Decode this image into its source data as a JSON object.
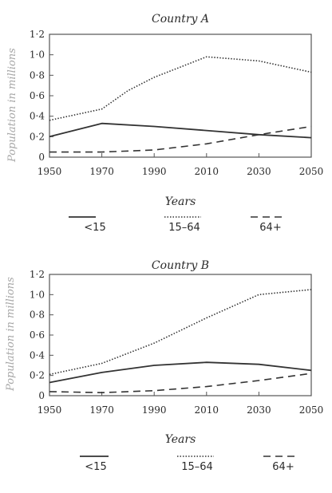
{
  "chart_data": [
    {
      "type": "line",
      "title": "Country A",
      "xlabel": "Years",
      "ylabel": "Population in millions",
      "x": [
        1950,
        1970,
        1990,
        2010,
        2030,
        2050
      ],
      "xticks": [
        "1950",
        "1970",
        "1990",
        "2010",
        "2030",
        "2050"
      ],
      "ylim": [
        0,
        1.2
      ],
      "yticks": [
        "0",
        "0·2",
        "0·4",
        "0·6",
        "0·8",
        "1·0",
        "1·2"
      ],
      "grid": false,
      "legend_position": "bottom",
      "series": [
        {
          "name": "<15",
          "style": "solid",
          "color": "#333333",
          "points": [
            [
              1950,
              0.2
            ],
            [
              1970,
              0.33
            ],
            [
              1990,
              0.3
            ],
            [
              2010,
              0.26
            ],
            [
              2030,
              0.22
            ],
            [
              2050,
              0.19
            ]
          ]
        },
        {
          "name": "15–64",
          "style": "dotted",
          "color": "#333333",
          "points": [
            [
              1950,
              0.36
            ],
            [
              1970,
              0.47
            ],
            [
              1980,
              0.65
            ],
            [
              1990,
              0.78
            ],
            [
              2000,
              0.88
            ],
            [
              2010,
              0.98
            ],
            [
              2030,
              0.94
            ],
            [
              2050,
              0.83
            ]
          ]
        },
        {
          "name": "64+",
          "style": "dashed",
          "color": "#333333",
          "points": [
            [
              1950,
              0.05
            ],
            [
              1970,
              0.05
            ],
            [
              1990,
              0.07
            ],
            [
              2010,
              0.13
            ],
            [
              2030,
              0.22
            ],
            [
              2050,
              0.3
            ]
          ]
        }
      ]
    },
    {
      "type": "line",
      "title": "Country B",
      "xlabel": "Years",
      "ylabel": "Population in millions",
      "x": [
        1950,
        1970,
        1990,
        2010,
        2030,
        2050
      ],
      "xticks": [
        "1950",
        "1970",
        "1990",
        "2010",
        "2030",
        "2050"
      ],
      "ylim": [
        0,
        1.2
      ],
      "yticks": [
        "0",
        "0·2",
        "0·4",
        "0·6",
        "0·8",
        "1·0",
        "1·2"
      ],
      "grid": false,
      "legend_position": "bottom",
      "series": [
        {
          "name": "<15",
          "style": "solid",
          "color": "#333333",
          "points": [
            [
              1950,
              0.13
            ],
            [
              1970,
              0.23
            ],
            [
              1990,
              0.3
            ],
            [
              2010,
              0.33
            ],
            [
              2030,
              0.31
            ],
            [
              2050,
              0.25
            ]
          ]
        },
        {
          "name": "15–64",
          "style": "dotted",
          "color": "#333333",
          "points": [
            [
              1950,
              0.21
            ],
            [
              1970,
              0.32
            ],
            [
              1990,
              0.52
            ],
            [
              2010,
              0.77
            ],
            [
              2030,
              1.0
            ],
            [
              2050,
              1.05
            ]
          ]
        },
        {
          "name": "64+",
          "style": "dashed",
          "color": "#333333",
          "points": [
            [
              1950,
              0.04
            ],
            [
              1970,
              0.03
            ],
            [
              1990,
              0.05
            ],
            [
              2010,
              0.09
            ],
            [
              2030,
              0.15
            ],
            [
              2050,
              0.22
            ]
          ]
        }
      ]
    }
  ]
}
